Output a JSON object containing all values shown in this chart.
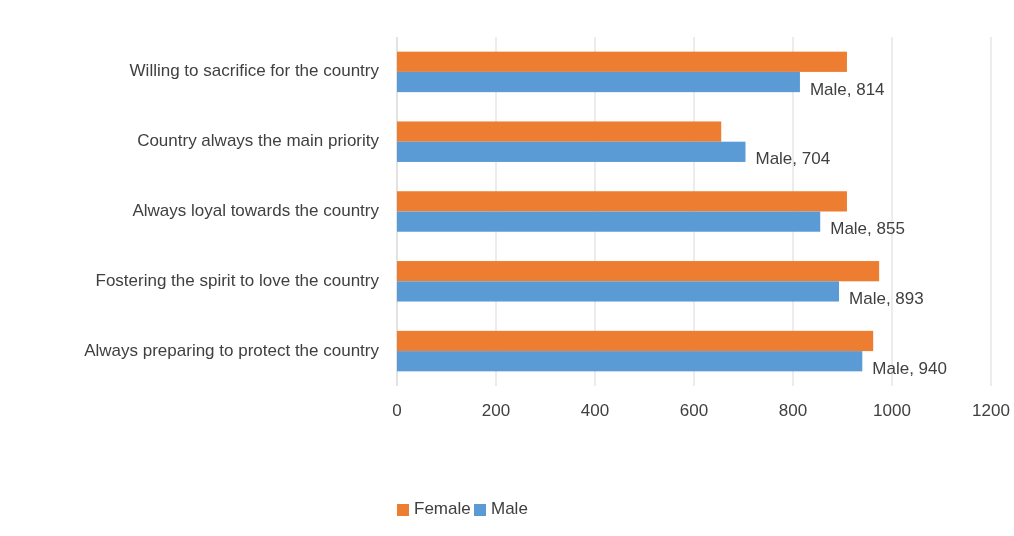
{
  "chart_data": {
    "type": "bar",
    "orientation": "horizontal",
    "categories": [
      "Willing to sacrifice for the country",
      "Country always the main priority",
      "Always loyal towards the country",
      "Fostering the spirit to love the country",
      "Always preparing to protect the country"
    ],
    "series": [
      {
        "name": "Female",
        "color": "#ed7d31",
        "values": [
          909,
          655,
          909,
          974,
          962
        ]
      },
      {
        "name": "Male",
        "color": "#5b9bd5",
        "values": [
          814,
          704,
          855,
          893,
          940
        ],
        "value_labels": [
          "Male, 814",
          "Male, 704",
          "Male, 855",
          "Male, 893",
          "Male, 940"
        ]
      }
    ],
    "xlim": [
      0,
      1200
    ],
    "xticks": [
      0,
      200,
      400,
      600,
      800,
      1000,
      1200
    ],
    "grid": "x",
    "legend": "bottom"
  }
}
